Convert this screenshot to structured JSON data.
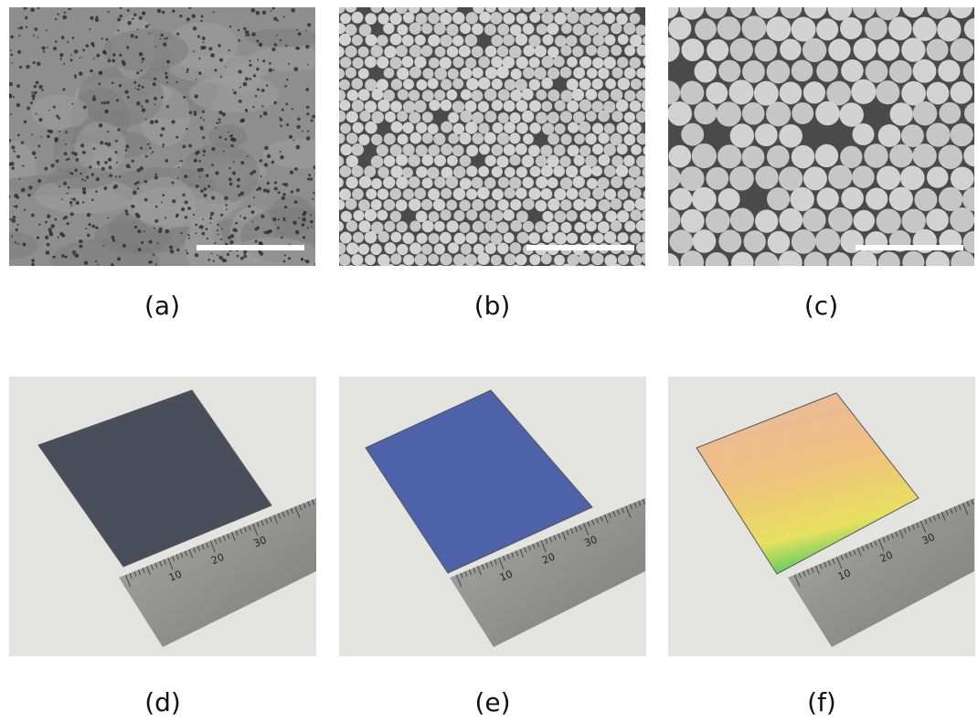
{
  "panels": [
    {
      "label": "(a)"
    },
    {
      "label": "(b)"
    },
    {
      "label": "(c)"
    },
    {
      "label": "(d)",
      "ruler_labels": [
        "10",
        "20",
        "30"
      ]
    },
    {
      "label": "(e)",
      "ruler_labels": [
        "10",
        "20",
        "30"
      ]
    },
    {
      "label": "(f)",
      "ruler_labels": [
        "10",
        "20",
        "30"
      ]
    }
  ]
}
